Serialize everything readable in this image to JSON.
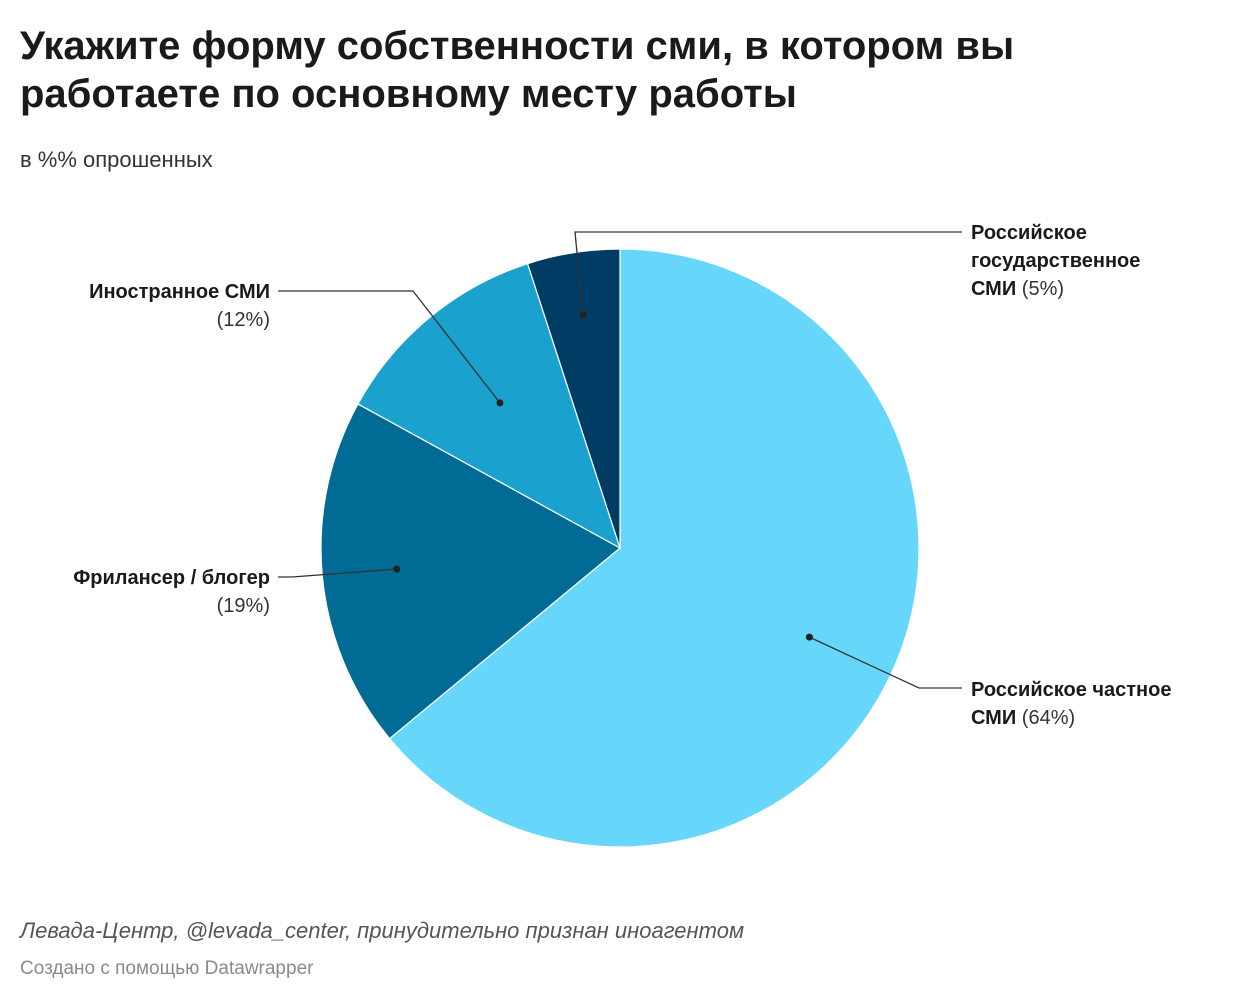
{
  "title": "Укажите форму собственности сми, в котором вы работаете по основному месту работы",
  "subtitle": "в %% опрошенных",
  "footer": {
    "source": "Левада-Центр, @levada_center, принудительно признан иноагентом",
    "credit": "Создано с помощью Datawrapper"
  },
  "chart_data": {
    "type": "pie",
    "title": "Укажите форму собственности сми, в котором вы работаете по основному месту работы",
    "subtitle": "в %% опрошенных",
    "slices": [
      {
        "name": "Российское частное СМИ",
        "value": 64,
        "label": "(64%)",
        "color": "#67d6fb"
      },
      {
        "name": "Фрилансер / блогер",
        "value": 19,
        "label": "(19%)",
        "color": "#006b95"
      },
      {
        "name": "Иностранное СМИ",
        "value": 12,
        "label": "(12%)",
        "color": "#1aa1ce"
      },
      {
        "name": "Российское государственное СМИ",
        "value": 5,
        "label": "(5%)",
        "color": "#003c63"
      }
    ]
  }
}
